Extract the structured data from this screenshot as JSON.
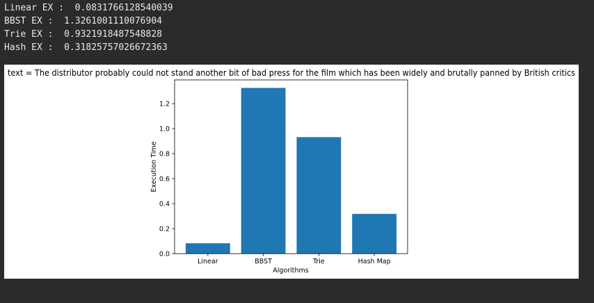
{
  "console": {
    "lines": [
      "Linear EX :  0.0831766128540039",
      "BBST EX :  1.3261001110076904",
      "Trie EX :  0.9321918487548828",
      "Hash EX :  0.31825757026672363"
    ]
  },
  "chart_data": {
    "type": "bar",
    "title": "text = The distributor probably could not stand another bit of bad press for the film which has been widely and brutally panned by British critics",
    "categories": [
      "Linear",
      "BBST",
      "Trie",
      "Hash Map"
    ],
    "values": [
      0.0831766128540039,
      1.3261001110076904,
      0.9321918487548828,
      0.31825757026672363
    ],
    "xlabel": "Algorithms",
    "ylabel": "Execution Time",
    "ylim": [
      0,
      1.39
    ],
    "yticks": [
      "0.0",
      "0.2",
      "0.4",
      "0.6",
      "0.8",
      "1.0",
      "1.2"
    ],
    "grid": false,
    "bar_color": "#1f77b4"
  }
}
